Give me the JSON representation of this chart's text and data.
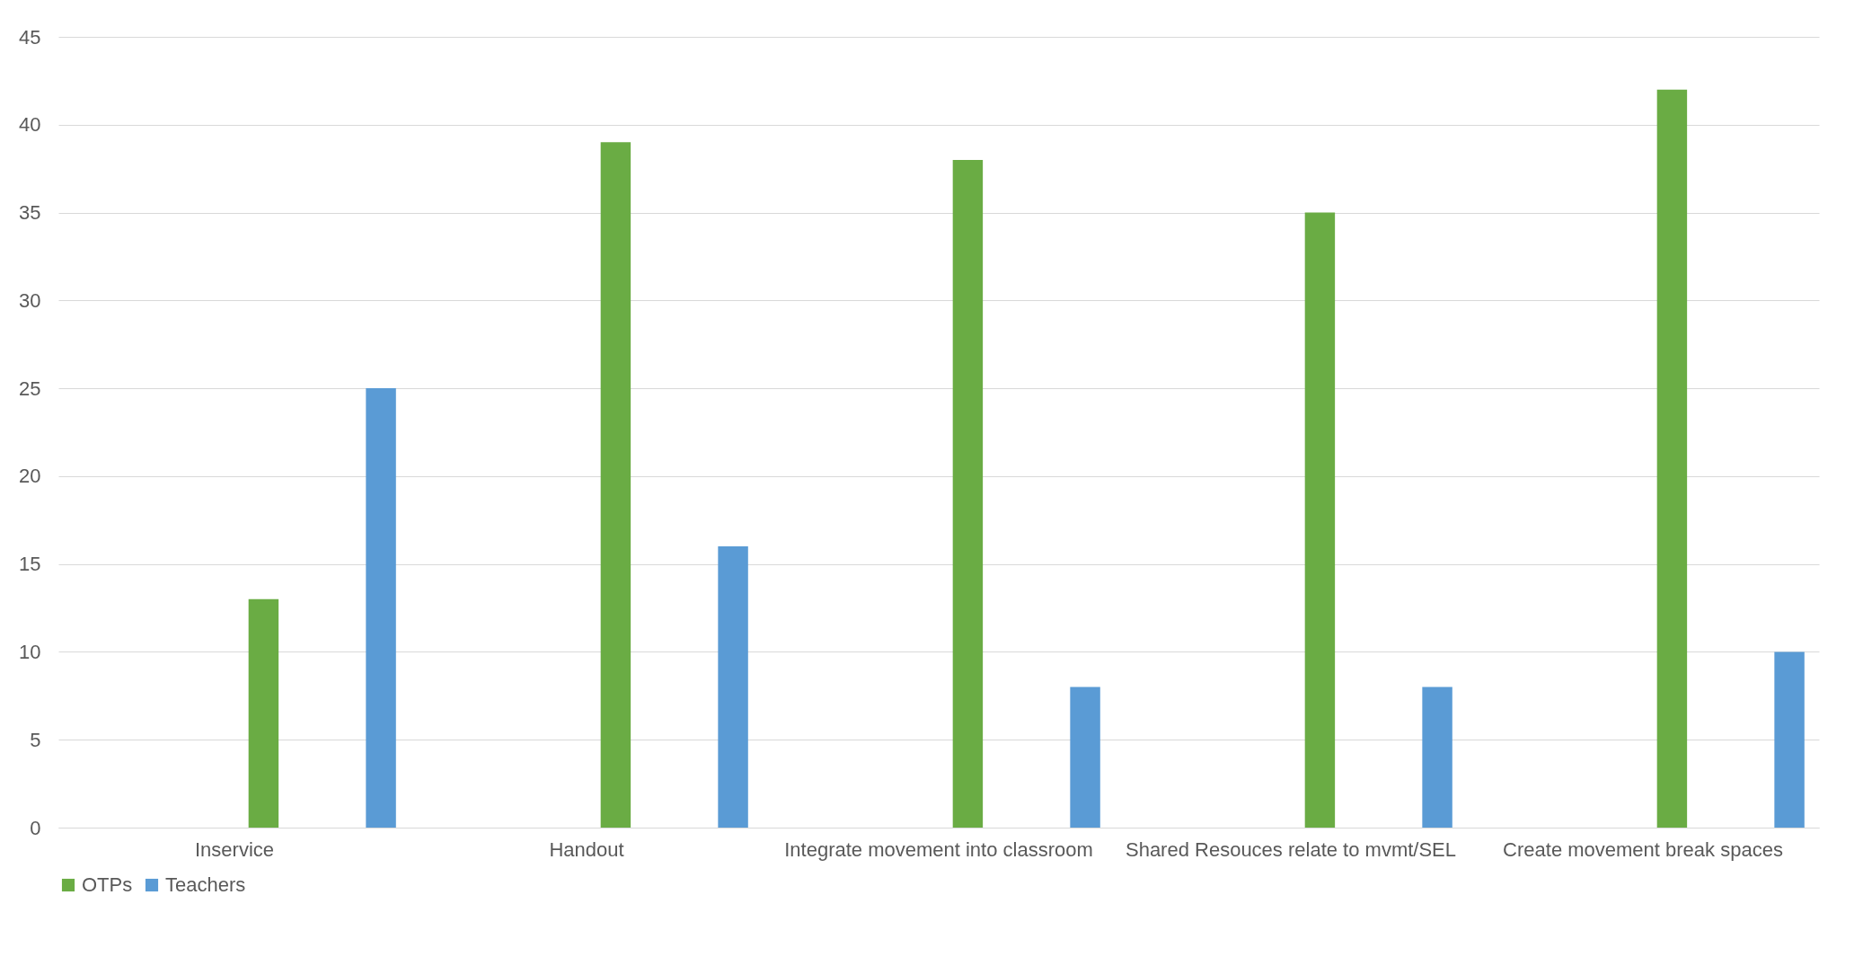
{
  "chart_data": {
    "type": "bar",
    "categories": [
      "Inservice",
      "Handout",
      "Integrate movement into classroom",
      "Shared Resouces relate to mvmt/SEL",
      "Create movement break spaces"
    ],
    "series": [
      {
        "name": "OTPs",
        "color": "#6aac44",
        "values": [
          13,
          39,
          38,
          35,
          42
        ]
      },
      {
        "name": "Teachers",
        "color": "#5a9bd5",
        "values": [
          25,
          16,
          8,
          8,
          10
        ]
      }
    ],
    "ylim": [
      0,
      45
    ],
    "yticks": [
      0,
      5,
      10,
      15,
      20,
      25,
      30,
      35,
      40,
      45
    ],
    "grid": "y",
    "legend": "bottom"
  }
}
